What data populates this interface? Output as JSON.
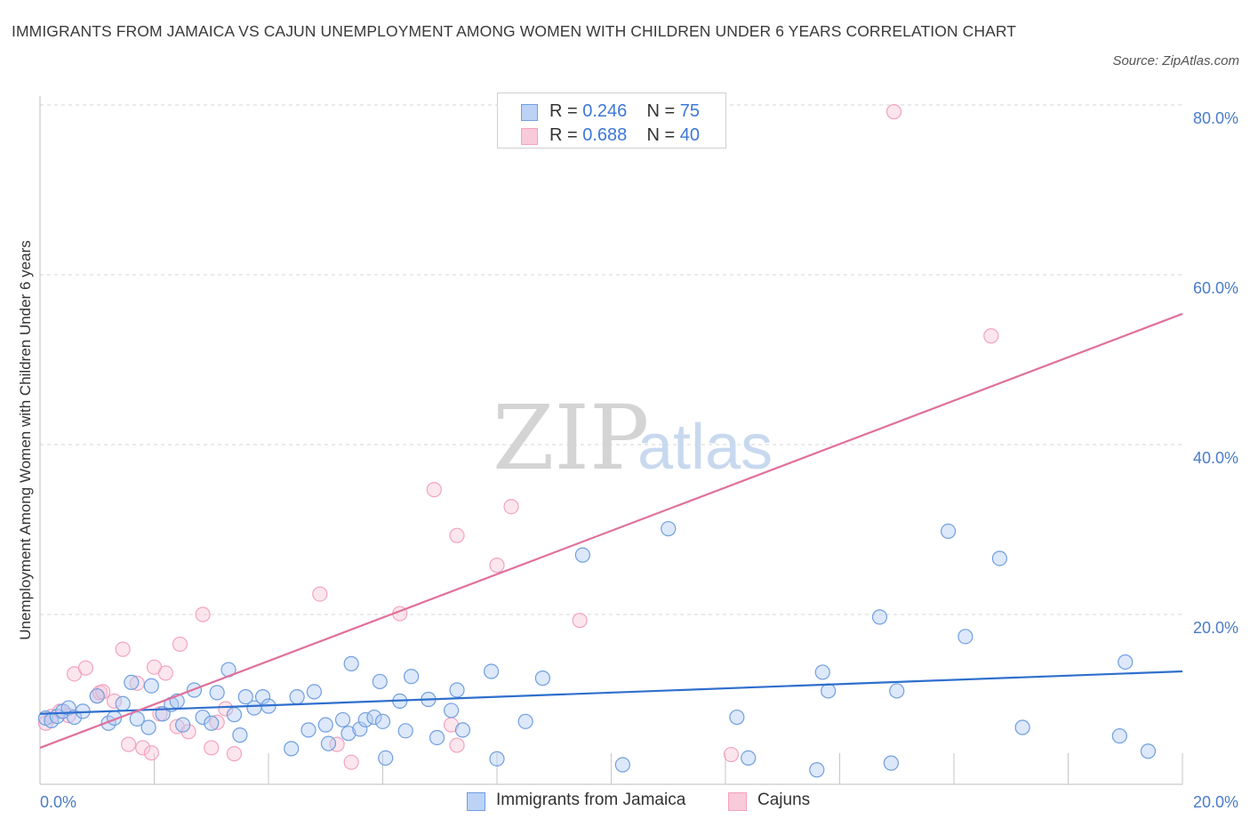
{
  "header": {
    "title": "IMMIGRANTS FROM JAMAICA VS CAJUN UNEMPLOYMENT AMONG WOMEN WITH CHILDREN UNDER 6 YEARS CORRELATION CHART",
    "source": "Source: ZipAtlas.com"
  },
  "watermark": {
    "zip": "ZIP",
    "atlas": "atlas"
  },
  "legend_top": [
    {
      "r_label": "R =",
      "r_value": "0.246",
      "n_label": "N =",
      "n_value": "75"
    },
    {
      "r_label": "R =",
      "r_value": "0.688",
      "n_label": "N =",
      "n_value": "40"
    }
  ],
  "legend_bottom": [
    {
      "label": "Immigrants from Jamaica"
    },
    {
      "label": "Cajuns"
    }
  ],
  "chart_data": {
    "type": "scatter",
    "title": "IMMIGRANTS FROM JAMAICA VS CAJUN UNEMPLOYMENT AMONG WOMEN WITH CHILDREN UNDER 6 YEARS CORRELATION CHART",
    "xlabel": "",
    "ylabel": "Unemployment Among Women with Children Under 6 years",
    "xlim": [
      0,
      20
    ],
    "ylim": [
      0,
      80
    ],
    "x_ticks": [
      {
        "value": 0,
        "label": "0.0%"
      },
      {
        "value": 20,
        "label": "20.0%"
      }
    ],
    "y_ticks": [
      {
        "value": 20,
        "label": "20.0%"
      },
      {
        "value": 40,
        "label": "40.0%"
      },
      {
        "value": 60,
        "label": "60.0%"
      },
      {
        "value": 80,
        "label": "80.0%"
      }
    ],
    "grid": true,
    "legend_position": "top-center",
    "colors": {
      "jamaica": "#6f9fe0",
      "cajuns": "#f3a3bd",
      "jamaica_line": "#2f6fcd",
      "cajuns_line": "#e0709a"
    },
    "series": [
      {
        "name": "Immigrants from Jamaica",
        "r": 0.246,
        "n": 75,
        "trend": {
          "x0": 0,
          "y0": 8.3,
          "x1": 20,
          "y1": 13.3
        },
        "points": [
          [
            0.1,
            7.8
          ],
          [
            0.2,
            7.5
          ],
          [
            0.3,
            8.0
          ],
          [
            0.4,
            8.6
          ],
          [
            0.5,
            9.0
          ],
          [
            0.6,
            7.9
          ],
          [
            0.75,
            8.6
          ],
          [
            1.0,
            10.4
          ],
          [
            1.2,
            7.2
          ],
          [
            1.3,
            7.8
          ],
          [
            1.45,
            9.5
          ],
          [
            1.6,
            12.0
          ],
          [
            1.7,
            7.7
          ],
          [
            1.9,
            6.7
          ],
          [
            1.95,
            11.6
          ],
          [
            2.15,
            8.3
          ],
          [
            2.3,
            9.4
          ],
          [
            2.4,
            9.8
          ],
          [
            2.5,
            7.0
          ],
          [
            2.7,
            11.1
          ],
          [
            2.85,
            7.9
          ],
          [
            3.0,
            7.2
          ],
          [
            3.1,
            10.8
          ],
          [
            3.3,
            13.5
          ],
          [
            3.4,
            8.2
          ],
          [
            3.5,
            5.8
          ],
          [
            3.6,
            10.3
          ],
          [
            3.75,
            9.0
          ],
          [
            3.9,
            10.3
          ],
          [
            4.0,
            9.2
          ],
          [
            4.4,
            4.2
          ],
          [
            4.5,
            10.3
          ],
          [
            4.7,
            6.4
          ],
          [
            4.8,
            10.9
          ],
          [
            5.0,
            7.0
          ],
          [
            5.05,
            4.8
          ],
          [
            5.3,
            7.6
          ],
          [
            5.4,
            6.0
          ],
          [
            5.45,
            14.2
          ],
          [
            5.6,
            6.5
          ],
          [
            5.7,
            7.6
          ],
          [
            5.85,
            7.9
          ],
          [
            5.95,
            12.1
          ],
          [
            6.0,
            7.4
          ],
          [
            6.05,
            3.1
          ],
          [
            6.3,
            9.8
          ],
          [
            6.4,
            6.3
          ],
          [
            6.5,
            12.7
          ],
          [
            6.8,
            10.0
          ],
          [
            6.95,
            5.5
          ],
          [
            7.2,
            8.7
          ],
          [
            7.3,
            11.1
          ],
          [
            7.4,
            6.4
          ],
          [
            7.9,
            13.3
          ],
          [
            8.0,
            3.0
          ],
          [
            8.5,
            7.4
          ],
          [
            8.8,
            12.5
          ],
          [
            9.5,
            27.0
          ],
          [
            10.2,
            2.3
          ],
          [
            11.0,
            30.1
          ],
          [
            12.2,
            7.9
          ],
          [
            12.4,
            3.1
          ],
          [
            13.6,
            1.7
          ],
          [
            13.7,
            13.2
          ],
          [
            13.8,
            11.0
          ],
          [
            14.7,
            19.7
          ],
          [
            14.9,
            2.5
          ],
          [
            15.0,
            11.0
          ],
          [
            15.9,
            29.8
          ],
          [
            16.2,
            17.4
          ],
          [
            16.8,
            26.6
          ],
          [
            17.2,
            6.7
          ],
          [
            18.9,
            5.7
          ],
          [
            19.0,
            14.4
          ],
          [
            19.4,
            3.9
          ]
        ]
      },
      {
        "name": "Cajuns",
        "r": 0.688,
        "n": 40,
        "trend": {
          "x0": 0,
          "y0": 4.3,
          "x1": 20,
          "y1": 55.4
        },
        "points": [
          [
            0.1,
            7.2
          ],
          [
            0.2,
            8.0
          ],
          [
            0.35,
            8.6
          ],
          [
            0.5,
            8.1
          ],
          [
            0.6,
            13.0
          ],
          [
            0.8,
            13.7
          ],
          [
            1.0,
            10.4
          ],
          [
            1.05,
            10.8
          ],
          [
            1.1,
            10.9
          ],
          [
            1.3,
            9.8
          ],
          [
            1.45,
            15.9
          ],
          [
            1.55,
            4.7
          ],
          [
            1.7,
            11.9
          ],
          [
            1.8,
            4.3
          ],
          [
            1.95,
            3.7
          ],
          [
            2.0,
            13.8
          ],
          [
            2.1,
            8.3
          ],
          [
            2.2,
            13.1
          ],
          [
            2.4,
            6.8
          ],
          [
            2.45,
            16.5
          ],
          [
            2.6,
            6.2
          ],
          [
            2.85,
            20.0
          ],
          [
            3.0,
            4.3
          ],
          [
            3.1,
            7.3
          ],
          [
            3.25,
            8.9
          ],
          [
            3.4,
            3.6
          ],
          [
            4.9,
            22.4
          ],
          [
            5.2,
            4.7
          ],
          [
            5.45,
            2.6
          ],
          [
            6.3,
            20.1
          ],
          [
            6.9,
            34.7
          ],
          [
            7.2,
            7.0
          ],
          [
            7.3,
            4.6
          ],
          [
            7.3,
            29.3
          ],
          [
            8.0,
            25.8
          ],
          [
            8.25,
            32.7
          ],
          [
            9.45,
            19.3
          ],
          [
            12.1,
            3.5
          ],
          [
            14.95,
            79.2
          ],
          [
            16.65,
            52.8
          ]
        ]
      }
    ]
  }
}
